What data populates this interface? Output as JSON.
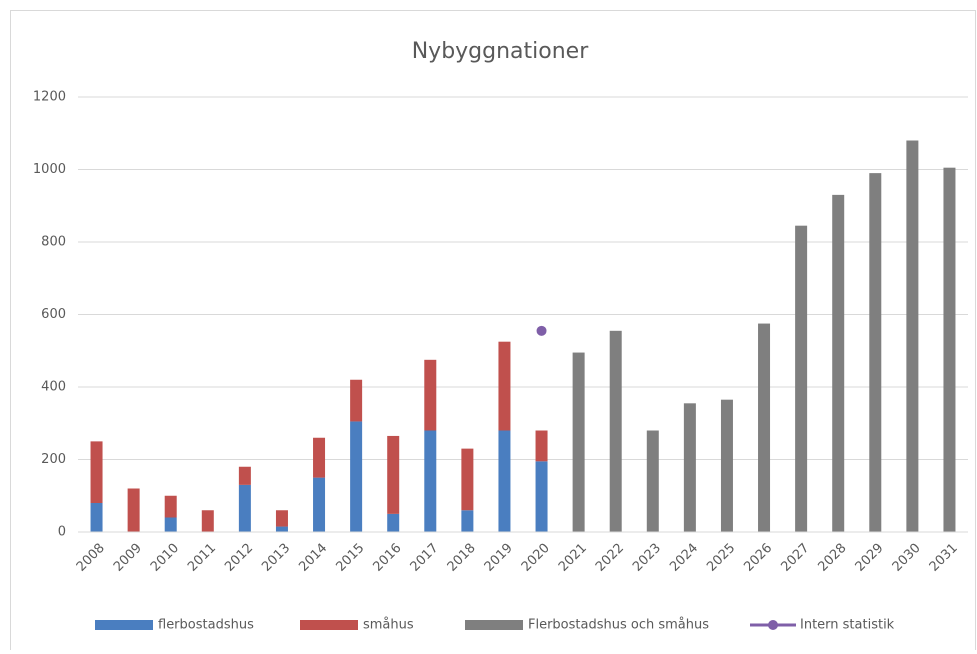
{
  "chart_data": {
    "type": "bar",
    "stacked": true,
    "title": "Nybyggnationer",
    "categories": [
      "2008",
      "2009",
      "2010",
      "2011",
      "2012",
      "2013",
      "2014",
      "2015",
      "2016",
      "2017",
      "2018",
      "2019",
      "2020",
      "2021",
      "2022",
      "2023",
      "2024",
      "2025",
      "2026",
      "2027",
      "2028",
      "2029",
      "2030",
      "2031"
    ],
    "series": [
      {
        "name": "flerbostadshus",
        "type": "bar",
        "color": "#4a7ec0",
        "values": [
          80,
          0,
          40,
          0,
          130,
          15,
          150,
          305,
          50,
          280,
          60,
          280,
          195,
          null,
          null,
          null,
          null,
          null,
          null,
          null,
          null,
          null,
          null,
          null
        ]
      },
      {
        "name": "småhus",
        "type": "bar",
        "color": "#c0504d",
        "values": [
          170,
          120,
          60,
          60,
          50,
          45,
          110,
          115,
          215,
          195,
          170,
          245,
          85,
          null,
          null,
          null,
          null,
          null,
          null,
          null,
          null,
          null,
          null,
          null
        ]
      },
      {
        "name": "Flerbostadshus och småhus",
        "type": "bar",
        "color": "#7f7f7f",
        "values": [
          null,
          null,
          null,
          null,
          null,
          null,
          null,
          null,
          null,
          null,
          null,
          null,
          null,
          495,
          555,
          280,
          355,
          365,
          575,
          845,
          930,
          990,
          1080,
          1005
        ]
      },
      {
        "name": "Intern statistik",
        "type": "line",
        "color": "#7f5fa8",
        "values": [
          null,
          null,
          null,
          null,
          null,
          null,
          null,
          null,
          null,
          null,
          null,
          null,
          555,
          null,
          null,
          null,
          null,
          null,
          null,
          null,
          null,
          null,
          null,
          null
        ]
      }
    ],
    "ylim": [
      0,
      1200
    ],
    "yticks": [
      0,
      200,
      400,
      600,
      800,
      1000,
      1200
    ],
    "grid": true,
    "legend": "bottom"
  }
}
